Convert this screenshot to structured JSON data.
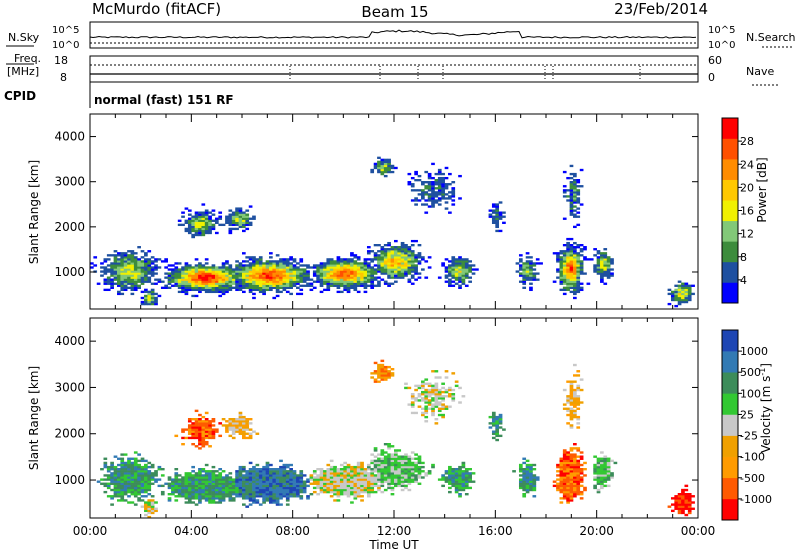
{
  "header": {
    "station": "McMurdo (fitACF)",
    "beam": "Beam 15",
    "date": "23/Feb/2014"
  },
  "sky_panel": {
    "left_label": "N.Sky",
    "right_label": "N.Search",
    "left_ticks": [
      "10^5",
      "10^0"
    ],
    "right_ticks": [
      "10^5",
      "10^0"
    ]
  },
  "freq_panel": {
    "left_label_line1": "Freq.",
    "left_label_line2": "[MHz]",
    "right_label": "Nave",
    "left_ticks": [
      "18",
      "8"
    ],
    "right_ticks": [
      "60",
      "0"
    ]
  },
  "cpid": {
    "label": "CPID",
    "value": "normal (fast) 151 RF"
  },
  "chart_data": [
    {
      "type": "heatmap",
      "panel": "power",
      "ylabel": "Slant Range [km]",
      "ylim": [
        180,
        4500
      ],
      "yticks": [
        "4000",
        "3000",
        "2000",
        "1000"
      ],
      "xlim": [
        0,
        24
      ],
      "colorbar_label": "Power [dB]",
      "colorbar_ticks": [
        "28",
        "24",
        "20",
        "16",
        "12",
        "8",
        "4"
      ],
      "colors": [
        "#0000ff",
        "#1e50a0",
        "#3c8c3c",
        "#82c878",
        "#f0f000",
        "#ffc800",
        "#ff8c00",
        "#ff5000",
        "#ff0000"
      ]
    },
    {
      "type": "heatmap",
      "panel": "velocity",
      "ylabel": "Slant Range [km]",
      "ylim": [
        180,
        4500
      ],
      "yticks": [
        "4000",
        "3000",
        "2000",
        "1000"
      ],
      "xlim": [
        0,
        24
      ],
      "colorbar_label": "Velocity [m s",
      "colorbar_label_sup": "-1",
      "colorbar_label_end": "]",
      "colorbar_ticks": [
        "1000",
        "500",
        "100",
        "25",
        "-25",
        "-100",
        "-500",
        "-1000"
      ],
      "colors": [
        "#ff0000",
        "#ff5a00",
        "#ff9b00",
        "#f0a000",
        "#c8c8c8",
        "#32c832",
        "#3c8c5a",
        "#327ab4",
        "#1e46b4"
      ]
    }
  ],
  "x_axis": {
    "ticks": [
      "00:00",
      "04:00",
      "08:00",
      "12:00",
      "16:00",
      "20:00",
      "00:00"
    ],
    "label": "Time UT"
  }
}
